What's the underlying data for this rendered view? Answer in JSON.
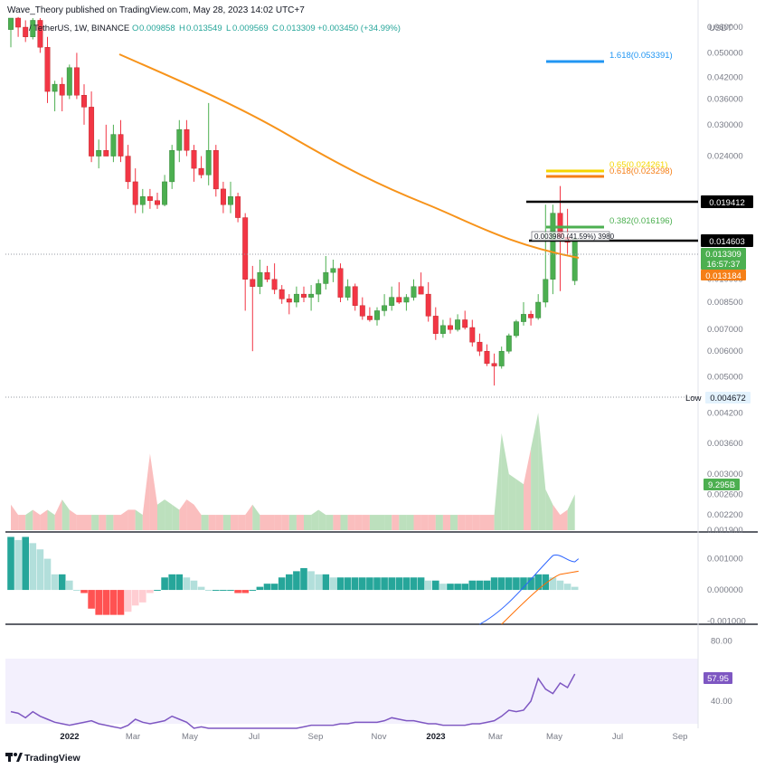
{
  "header": {
    "published": "Wave_Theory published on TradingView.com, May 28, 2023 14:02 UTC+7",
    "symbol": "/ TetherUS, 1W, BINANCE",
    "o_label": "O",
    "o_value": "0.009858",
    "h_label": "H",
    "h_value": "0.013549",
    "l_label": "L",
    "l_value": "0.009569",
    "c_label": "C",
    "c_value": "0.013309",
    "change": "+0.003450 (+34.99%)"
  },
  "axis": {
    "currency": "USDT",
    "price_ticks": [
      "0.060000",
      "0.050000",
      "0.042000",
      "0.036000",
      "0.030000",
      "0.024000",
      "0.017000",
      "0.010000",
      "0.008500",
      "0.007000",
      "0.006000",
      "0.005000"
    ],
    "volume_ticks": [
      "0.004200",
      "0.003600",
      "0.003000",
      "0.002600",
      "0.002200",
      "0.001900"
    ],
    "macd_ticks": [
      "0.001000",
      "0.000000",
      "-0.001000"
    ],
    "rsi_ticks": [
      "80.00",
      "40.00"
    ],
    "time_ticks": [
      "2022",
      "Mar",
      "May",
      "Jul",
      "Sep",
      "Nov",
      "2023",
      "Mar",
      "May",
      "Jul",
      "Sep"
    ]
  },
  "fib": {
    "f1618": "1.618(0.053391)",
    "f065": "0.65(0.024261)",
    "f0618": "0.618(0.023298)",
    "f0382": "0.382(0.016196)"
  },
  "levels": {
    "high_line": "0.019412",
    "mid_line": "0.014603",
    "measure": "0.003980 (41.59%) 3980",
    "current_price": "0.013309",
    "countdown": "16:57:37",
    "ema_value": "0.013184",
    "low_label": "Low",
    "low_value": "0.004672"
  },
  "indicators": {
    "volume_value": "9.295B",
    "rsi_value": "57.95"
  },
  "footer": {
    "logo_text": "TradingView"
  },
  "colors": {
    "up": "#26a69a",
    "down": "#ef5350",
    "up_candle": "#4caf50",
    "down_candle": "#f23645",
    "ema": "#f7931a",
    "fib1618": "#2196f3",
    "fib065": "#f5d500",
    "fib0618": "#f57f17",
    "fib0382": "#4caf50",
    "rsi": "#7e57c2",
    "macd_line": "#2962ff",
    "signal": "#ff6d00"
  },
  "chart_data": [
    {
      "type": "candlestick",
      "title": "/ TetherUS, 1W, BINANCE",
      "ylabel": "USDT",
      "yscale": "log",
      "ylim": [
        0.0043,
        0.064
      ],
      "x": [
        "2021-11-29",
        "2021-12-06",
        "2021-12-13",
        "2021-12-20",
        "2021-12-27",
        "2022-01-03",
        "2022-01-10",
        "2022-01-17",
        "2022-01-24",
        "2022-01-31",
        "2022-02-07",
        "2022-02-14",
        "2022-02-21",
        "2022-02-28",
        "2022-03-07",
        "2022-03-14",
        "2022-03-21",
        "2022-03-28",
        "2022-04-04",
        "2022-04-11",
        "2022-04-18",
        "2022-04-25",
        "2022-05-02",
        "2022-05-09",
        "2022-05-16",
        "2022-05-23",
        "2022-05-30",
        "2022-06-06",
        "2022-06-13",
        "2022-06-20",
        "2022-06-27",
        "2022-07-04",
        "2022-07-11",
        "2022-07-18",
        "2022-07-25",
        "2022-08-01",
        "2022-08-08",
        "2022-08-15",
        "2022-08-22",
        "2022-08-29",
        "2022-09-05",
        "2022-09-12",
        "2022-09-19",
        "2022-09-26",
        "2022-10-03",
        "2022-10-10",
        "2022-10-17",
        "2022-10-24",
        "2022-10-31",
        "2022-11-07",
        "2022-11-14",
        "2022-11-21",
        "2022-11-28",
        "2022-12-05",
        "2022-12-12",
        "2022-12-19",
        "2022-12-26",
        "2023-01-02",
        "2023-01-09",
        "2023-01-16",
        "2023-01-23",
        "2023-01-30",
        "2023-02-06",
        "2023-02-13",
        "2023-02-20",
        "2023-02-27",
        "2023-03-06",
        "2023-03-13",
        "2023-03-20",
        "2023-03-27",
        "2023-04-03",
        "2023-04-10",
        "2023-04-17",
        "2023-04-24",
        "2023-05-01",
        "2023-05-08",
        "2023-05-15",
        "2023-05-22"
      ],
      "series": [
        {
          "name": "price",
          "values": [
            {
              "o": 0.059,
              "h": 0.064,
              "l": 0.052,
              "c": 0.064
            },
            {
              "o": 0.064,
              "h": 0.0645,
              "l": 0.056,
              "c": 0.06
            },
            {
              "o": 0.06,
              "h": 0.063,
              "l": 0.054,
              "c": 0.056
            },
            {
              "o": 0.056,
              "h": 0.064,
              "l": 0.055,
              "c": 0.063
            },
            {
              "o": 0.063,
              "h": 0.064,
              "l": 0.05,
              "c": 0.052
            },
            {
              "o": 0.052,
              "h": 0.056,
              "l": 0.035,
              "c": 0.038
            },
            {
              "o": 0.038,
              "h": 0.041,
              "l": 0.033,
              "c": 0.04
            },
            {
              "o": 0.04,
              "h": 0.042,
              "l": 0.033,
              "c": 0.037
            },
            {
              "o": 0.037,
              "h": 0.046,
              "l": 0.036,
              "c": 0.045
            },
            {
              "o": 0.045,
              "h": 0.05,
              "l": 0.036,
              "c": 0.037
            },
            {
              "o": 0.037,
              "h": 0.04,
              "l": 0.03,
              "c": 0.034
            },
            {
              "o": 0.034,
              "h": 0.038,
              "l": 0.023,
              "c": 0.024
            },
            {
              "o": 0.024,
              "h": 0.027,
              "l": 0.022,
              "c": 0.025
            },
            {
              "o": 0.025,
              "h": 0.03,
              "l": 0.024,
              "c": 0.024
            },
            {
              "o": 0.024,
              "h": 0.03,
              "l": 0.023,
              "c": 0.028
            },
            {
              "o": 0.028,
              "h": 0.031,
              "l": 0.023,
              "c": 0.024
            },
            {
              "o": 0.024,
              "h": 0.026,
              "l": 0.019,
              "c": 0.02
            },
            {
              "o": 0.02,
              "h": 0.022,
              "l": 0.016,
              "c": 0.017
            },
            {
              "o": 0.017,
              "h": 0.019,
              "l": 0.016,
              "c": 0.018
            },
            {
              "o": 0.018,
              "h": 0.019,
              "l": 0.0165,
              "c": 0.0175
            },
            {
              "o": 0.0175,
              "h": 0.0185,
              "l": 0.0165,
              "c": 0.017
            },
            {
              "o": 0.017,
              "h": 0.021,
              "l": 0.0168,
              "c": 0.02
            },
            {
              "o": 0.02,
              "h": 0.026,
              "l": 0.019,
              "c": 0.025
            },
            {
              "o": 0.025,
              "h": 0.031,
              "l": 0.023,
              "c": 0.029
            },
            {
              "o": 0.029,
              "h": 0.031,
              "l": 0.024,
              "c": 0.025
            },
            {
              "o": 0.025,
              "h": 0.026,
              "l": 0.02,
              "c": 0.022
            },
            {
              "o": 0.022,
              "h": 0.024,
              "l": 0.0205,
              "c": 0.021
            },
            {
              "o": 0.021,
              "h": 0.035,
              "l": 0.0195,
              "c": 0.025
            },
            {
              "o": 0.025,
              "h": 0.026,
              "l": 0.018,
              "c": 0.019
            },
            {
              "o": 0.019,
              "h": 0.02,
              "l": 0.016,
              "c": 0.017
            },
            {
              "o": 0.017,
              "h": 0.02,
              "l": 0.016,
              "c": 0.018
            },
            {
              "o": 0.018,
              "h": 0.0185,
              "l": 0.015,
              "c": 0.0155
            },
            {
              "o": 0.0155,
              "h": 0.016,
              "l": 0.008,
              "c": 0.01
            },
            {
              "o": 0.01,
              "h": 0.011,
              "l": 0.006,
              "c": 0.0095
            },
            {
              "o": 0.0095,
              "h": 0.0115,
              "l": 0.009,
              "c": 0.0105
            },
            {
              "o": 0.0105,
              "h": 0.011,
              "l": 0.0098,
              "c": 0.01
            },
            {
              "o": 0.01,
              "h": 0.0112,
              "l": 0.009,
              "c": 0.0093
            },
            {
              "o": 0.0093,
              "h": 0.0096,
              "l": 0.0084,
              "c": 0.0087
            },
            {
              "o": 0.0087,
              "h": 0.009,
              "l": 0.0078,
              "c": 0.0085
            },
            {
              "o": 0.0085,
              "h": 0.0095,
              "l": 0.0082,
              "c": 0.009
            },
            {
              "o": 0.009,
              "h": 0.0095,
              "l": 0.0085,
              "c": 0.0088
            },
            {
              "o": 0.0088,
              "h": 0.0096,
              "l": 0.008,
              "c": 0.009
            },
            {
              "o": 0.009,
              "h": 0.01,
              "l": 0.0085,
              "c": 0.0097
            },
            {
              "o": 0.0097,
              "h": 0.0118,
              "l": 0.0093,
              "c": 0.0105
            },
            {
              "o": 0.0105,
              "h": 0.0115,
              "l": 0.0098,
              "c": 0.0108
            },
            {
              "o": 0.0108,
              "h": 0.0112,
              "l": 0.0085,
              "c": 0.0088
            },
            {
              "o": 0.0088,
              "h": 0.01,
              "l": 0.0086,
              "c": 0.0095
            },
            {
              "o": 0.0095,
              "h": 0.0097,
              "l": 0.008,
              "c": 0.0083
            },
            {
              "o": 0.0083,
              "h": 0.0088,
              "l": 0.0075,
              "c": 0.0077
            },
            {
              "o": 0.0077,
              "h": 0.0082,
              "l": 0.0074,
              "c": 0.0075
            },
            {
              "o": 0.0075,
              "h": 0.0082,
              "l": 0.0072,
              "c": 0.008
            },
            {
              "o": 0.008,
              "h": 0.009,
              "l": 0.0077,
              "c": 0.0083
            },
            {
              "o": 0.0083,
              "h": 0.0095,
              "l": 0.008,
              "c": 0.0088
            },
            {
              "o": 0.0088,
              "h": 0.0098,
              "l": 0.0084,
              "c": 0.0085
            },
            {
              "o": 0.0085,
              "h": 0.009,
              "l": 0.008,
              "c": 0.0088
            },
            {
              "o": 0.0088,
              "h": 0.01,
              "l": 0.0086,
              "c": 0.0095
            },
            {
              "o": 0.0095,
              "h": 0.0105,
              "l": 0.009,
              "c": 0.009
            },
            {
              "o": 0.009,
              "h": 0.0098,
              "l": 0.0074,
              "c": 0.0077
            },
            {
              "o": 0.0077,
              "h": 0.0082,
              "l": 0.0065,
              "c": 0.0068
            },
            {
              "o": 0.0068,
              "h": 0.0075,
              "l": 0.0066,
              "c": 0.0072
            },
            {
              "o": 0.0072,
              "h": 0.0076,
              "l": 0.0068,
              "c": 0.007
            },
            {
              "o": 0.007,
              "h": 0.0078,
              "l": 0.0069,
              "c": 0.0075
            },
            {
              "o": 0.0075,
              "h": 0.008,
              "l": 0.007,
              "c": 0.0071
            },
            {
              "o": 0.0071,
              "h": 0.0075,
              "l": 0.0062,
              "c": 0.0064
            },
            {
              "o": 0.0064,
              "h": 0.0068,
              "l": 0.0058,
              "c": 0.006
            },
            {
              "o": 0.006,
              "h": 0.0063,
              "l": 0.0054,
              "c": 0.0055
            },
            {
              "o": 0.0055,
              "h": 0.0059,
              "l": 0.0047,
              "c": 0.0054
            },
            {
              "o": 0.0054,
              "h": 0.0062,
              "l": 0.0053,
              "c": 0.006
            },
            {
              "o": 0.006,
              "h": 0.0068,
              "l": 0.0059,
              "c": 0.0067
            },
            {
              "o": 0.0067,
              "h": 0.0075,
              "l": 0.0066,
              "c": 0.0074
            },
            {
              "o": 0.0074,
              "h": 0.0085,
              "l": 0.0072,
              "c": 0.0078
            },
            {
              "o": 0.0078,
              "h": 0.008,
              "l": 0.0072,
              "c": 0.0076
            },
            {
              "o": 0.0076,
              "h": 0.009,
              "l": 0.0075,
              "c": 0.0085
            },
            {
              "o": 0.0085,
              "h": 0.017,
              "l": 0.0082,
              "c": 0.01
            },
            {
              "o": 0.01,
              "h": 0.017,
              "l": 0.009,
              "c": 0.016
            },
            {
              "o": 0.016,
              "h": 0.0194,
              "l": 0.0092,
              "c": 0.0135
            },
            {
              "o": 0.0135,
              "h": 0.0165,
              "l": 0.012,
              "c": 0.013
            },
            {
              "o": 0.0099,
              "h": 0.0135,
              "l": 0.0096,
              "c": 0.0133
            }
          ]
        }
      ]
    },
    {
      "type": "area",
      "title": "",
      "ylabel": "",
      "ylim": [
        0.0019,
        0.0044
      ],
      "series": [
        {
          "name": "9.295B",
          "values": [
            0.0024,
            0.0022,
            0.0022,
            0.0023,
            0.0022,
            0.0023,
            0.0022,
            0.0025,
            0.0023,
            0.0022,
            0.0022,
            0.0022,
            0.0022,
            0.0022,
            0.0022,
            0.0022,
            0.0023,
            0.0023,
            0.0022,
            0.0034,
            0.0024,
            0.0025,
            0.0024,
            0.0023,
            0.0025,
            0.0024,
            0.0022,
            0.0022,
            0.0022,
            0.0022,
            0.0022,
            0.0022,
            0.0022,
            0.0024,
            0.0022,
            0.0022,
            0.0022,
            0.0022,
            0.0022,
            0.0022,
            0.0022,
            0.0022,
            0.0023,
            0.0022,
            0.0022,
            0.0022,
            0.0022,
            0.0022,
            0.0022,
            0.0022,
            0.0022,
            0.0022,
            0.0022,
            0.0022,
            0.0022,
            0.0022,
            0.0022,
            0.0022,
            0.0022,
            0.0022,
            0.0022,
            0.0022,
            0.0022,
            0.0022,
            0.0022,
            0.0022,
            0.0022,
            0.0038,
            0.003,
            0.0029,
            0.0028,
            0.0035,
            0.0042,
            0.0027,
            0.0024,
            0.0022,
            0.0023,
            0.0026
          ]
        }
      ]
    },
    {
      "type": "bar",
      "title": "",
      "ylabel": "",
      "ylim": [
        -0.0011,
        0.0018
      ],
      "series": [
        {
          "name": "histogram",
          "values": [
            0.0017,
            0.0016,
            0.0017,
            0.0015,
            0.0013,
            0.001,
            0.0005,
            0.0005,
            0.0003,
            0.0,
            -0.0001,
            -0.0006,
            -0.0008,
            -0.0008,
            -0.0008,
            -0.0008,
            -0.0007,
            -0.0005,
            -0.0004,
            -0.0001,
            0.0,
            0.0004,
            0.0005,
            0.0005,
            0.0004,
            0.0003,
            0.0001,
            0.0,
            0.0,
            0.0,
            0.0,
            -0.0001,
            -0.0001,
            0.0,
            0.0001,
            0.0002,
            0.0002,
            0.0004,
            0.0005,
            0.0006,
            0.0007,
            0.0006,
            0.0005,
            0.0005,
            0.0004,
            0.0004,
            0.0004,
            0.0004,
            0.0004,
            0.0004,
            0.0004,
            0.0004,
            0.0004,
            0.0004,
            0.0004,
            0.0004,
            0.0004,
            0.0003,
            0.0003,
            0.0002,
            0.0002,
            0.0002,
            0.0002,
            0.0003,
            0.0003,
            0.0003,
            0.0004,
            0.0004,
            0.0004,
            0.0004,
            0.0004,
            0.0004,
            0.0005,
            0.0005,
            0.0004,
            0.0003,
            0.0002,
            0.0001
          ]
        }
      ]
    },
    {
      "type": "line",
      "title": "",
      "ylabel": "",
      "ylim": [
        0,
        100
      ],
      "series": [
        {
          "name": "57.95",
          "values": [
            33,
            32,
            29,
            33,
            30,
            28,
            26,
            25,
            24,
            25,
            26,
            27,
            25,
            24,
            23,
            22,
            24,
            28,
            26,
            25,
            26,
            27,
            30,
            28,
            26,
            22,
            23,
            22,
            22,
            22,
            22,
            22,
            22,
            22,
            22,
            22,
            22,
            22,
            22,
            22,
            23,
            24,
            24,
            24,
            24,
            25,
            25,
            26,
            26,
            26,
            26,
            27,
            29,
            28,
            27,
            27,
            26,
            25,
            25,
            24,
            24,
            24,
            24,
            25,
            25,
            26,
            27,
            30,
            34,
            33,
            34,
            40,
            55,
            48,
            45,
            52,
            49,
            58
          ]
        }
      ]
    }
  ]
}
